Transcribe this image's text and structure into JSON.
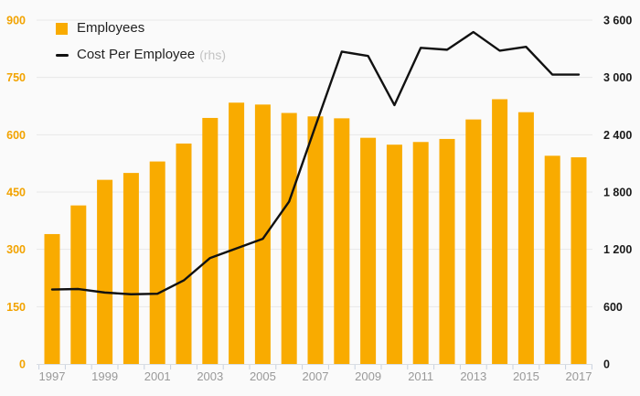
{
  "legend": {
    "employees_label": "Employees",
    "cost_label": "Cost Per Employee",
    "cost_suffix": "(rhs)"
  },
  "colors": {
    "bar": "#F9AB00",
    "line": "#111111",
    "left_axis_text": "#F2A300",
    "right_axis_text": "#1a1a1a",
    "x_axis_text": "#999999",
    "gridline": "#e8e8e8",
    "baseline": "#d9dde3",
    "tick": "#c8d1e0",
    "background": "#fafafa"
  },
  "chart_data": {
    "type": "bar",
    "subtype": "bar+line combo",
    "title": "",
    "x": [
      1997,
      1998,
      1999,
      2000,
      2001,
      2002,
      2003,
      2004,
      2005,
      2006,
      2007,
      2008,
      2009,
      2010,
      2011,
      2012,
      2013,
      2014,
      2015,
      2016,
      2017
    ],
    "x_tick_labels": [
      1997,
      1999,
      2001,
      2003,
      2005,
      2007,
      2009,
      2011,
      2013,
      2015,
      2017
    ],
    "series": [
      {
        "name": "Employees",
        "type": "bar",
        "axis": "left",
        "values": [
          340,
          415,
          482,
          500,
          530,
          577,
          644,
          684,
          679,
          657,
          648,
          643,
          592,
          574,
          581,
          589,
          640,
          693,
          659,
          545,
          541
        ]
      },
      {
        "name": "Cost Per Employee",
        "type": "line",
        "axis": "right",
        "values": [
          780,
          785,
          748,
          730,
          735,
          875,
          1110,
          1210,
          1310,
          1700,
          2490,
          3270,
          3225,
          2710,
          3310,
          3290,
          3475,
          3280,
          3320,
          3030,
          3030
        ]
      }
    ],
    "left_axis": {
      "range": [
        0,
        900
      ],
      "ticks": [
        0,
        150,
        300,
        450,
        600,
        750,
        900
      ],
      "tick_labels": [
        "0",
        "150",
        "300",
        "450",
        "600",
        "750",
        "900"
      ]
    },
    "right_axis": {
      "range": [
        0,
        3600
      ],
      "ticks": [
        0,
        600,
        1200,
        1800,
        2400,
        3000,
        3600
      ],
      "tick_labels": [
        "0",
        "600",
        "1 200",
        "1 800",
        "2 400",
        "3 000",
        "3 600"
      ]
    },
    "grid": true,
    "legend_position": "top-left"
  }
}
